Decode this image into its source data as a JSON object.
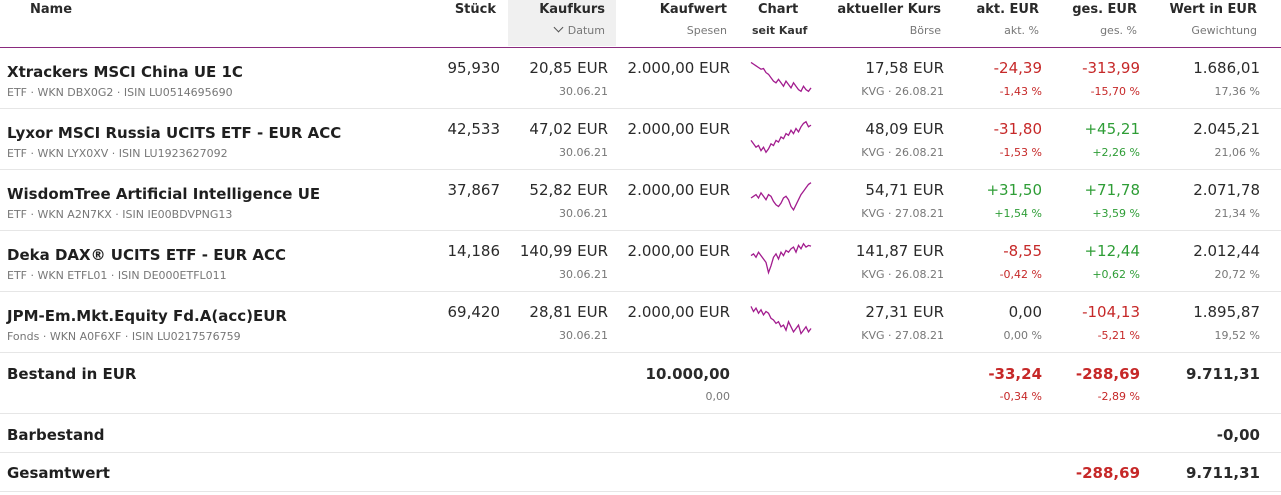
{
  "header": {
    "name": "Name",
    "stueck": "Stück",
    "kaufkurs": "Kaufkurs",
    "datum": "Datum",
    "kaufwert": "Kaufwert",
    "spesen": "Spesen",
    "chart": "Chart",
    "seit_kauf": "seit Kauf",
    "aktueller_kurs": "aktueller Kurs",
    "boerse": "Börse",
    "akt_eur": "akt. EUR",
    "akt_pct": "akt. %",
    "ges_eur": "ges. EUR",
    "ges_pct": "ges. %",
    "wert": "Wert in EUR",
    "gewichtung": "Gewichtung"
  },
  "colors": {
    "accent": "#8a2a7e",
    "negative": "#c62828",
    "positive": "#2e9d36",
    "sparkline": "#a21c8e"
  },
  "rows": [
    {
      "name": "Xtrackers MSCI China UE 1C",
      "meta": "ETF · WKN DBX0G2 · ISIN LU0514695690",
      "stueck": "95,930",
      "kaufkurs": "20,85 EUR",
      "datum": "30.06.21",
      "kaufwert": "2.000,00 EUR",
      "kurs": "17,58 EUR",
      "boerse": "KVG · 26.08.21",
      "akt_eur": "-24,39",
      "akt_pct": "-1,43 %",
      "ges_eur": "-313,99",
      "ges_pct": "-15,70 %",
      "wert": "1.686,01",
      "gewichtung": "17,36 %",
      "akt_sign": "neg",
      "ges_sign": "neg",
      "spark": [
        0.9,
        0.85,
        0.8,
        0.75,
        0.7,
        0.72,
        0.6,
        0.55,
        0.45,
        0.35,
        0.3,
        0.4,
        0.3,
        0.2,
        0.35,
        0.25,
        0.15,
        0.3,
        0.2,
        0.1,
        0.05,
        0.2,
        0.1,
        0.05,
        0.15
      ]
    },
    {
      "name": "Lyxor MSCI Russia UCITS ETF - EUR ACC",
      "meta": "ETF · WKN LYX0XV · ISIN LU1923627092",
      "stueck": "42,533",
      "kaufkurs": "47,02 EUR",
      "datum": "30.06.21",
      "kaufwert": "2.000,00 EUR",
      "kurs": "48,09 EUR",
      "boerse": "KVG · 26.08.21",
      "akt_eur": "-31,80",
      "akt_pct": "-1,53 %",
      "ges_eur": "+45,21",
      "ges_pct": "+2,26 %",
      "wert": "2.045,21",
      "gewichtung": "21,06 %",
      "akt_sign": "neg",
      "ges_sign": "pos",
      "spark": [
        0.4,
        0.3,
        0.2,
        0.25,
        0.1,
        0.2,
        0.05,
        0.15,
        0.3,
        0.25,
        0.4,
        0.35,
        0.5,
        0.45,
        0.6,
        0.55,
        0.7,
        0.6,
        0.75,
        0.65,
        0.8,
        0.9,
        0.95,
        0.8,
        0.85
      ]
    },
    {
      "name": "WisdomTree Artificial Intelligence UE",
      "meta": "ETF · WKN A2N7KX · ISIN IE00BDVPNG13",
      "stueck": "37,867",
      "kaufkurs": "52,82 EUR",
      "datum": "30.06.21",
      "kaufwert": "2.000,00 EUR",
      "kurs": "54,71 EUR",
      "boerse": "KVG · 27.08.21",
      "akt_eur": "+31,50",
      "akt_pct": "+1,54 %",
      "ges_eur": "+71,78",
      "ges_pct": "+3,59 %",
      "wert": "2.071,78",
      "gewichtung": "21,34 %",
      "akt_sign": "pos",
      "ges_sign": "pos",
      "spark": [
        0.5,
        0.55,
        0.6,
        0.5,
        0.65,
        0.55,
        0.45,
        0.6,
        0.55,
        0.4,
        0.3,
        0.25,
        0.35,
        0.5,
        0.55,
        0.45,
        0.25,
        0.15,
        0.3,
        0.45,
        0.6,
        0.7,
        0.8,
        0.9,
        0.95
      ]
    },
    {
      "name": "Deka DAX® UCITS ETF - EUR ACC",
      "meta": "ETF · WKN ETFL01 · ISIN DE000ETFL011",
      "stueck": "14,186",
      "kaufkurs": "140,99 EUR",
      "datum": "30.06.21",
      "kaufwert": "2.000,00 EUR",
      "kurs": "141,87 EUR",
      "boerse": "KVG · 26.08.21",
      "akt_eur": "-8,55",
      "akt_pct": "-0,42 %",
      "ges_eur": "+12,44",
      "ges_pct": "+0,62 %",
      "wert": "2.012,44",
      "gewichtung": "20,72 %",
      "akt_sign": "neg",
      "ges_sign": "pos",
      "spark": [
        0.6,
        0.65,
        0.55,
        0.7,
        0.6,
        0.5,
        0.4,
        0.1,
        0.3,
        0.55,
        0.65,
        0.5,
        0.7,
        0.6,
        0.75,
        0.7,
        0.8,
        0.85,
        0.7,
        0.9,
        0.8,
        0.95,
        0.85,
        0.9,
        0.88
      ]
    },
    {
      "name": "JPM-Em.Mkt.Equity Fd.A(acc)EUR",
      "meta": "Fonds · WKN A0F6XF · ISIN LU0217576759",
      "stueck": "69,420",
      "kaufkurs": "28,81 EUR",
      "datum": "30.06.21",
      "kaufwert": "2.000,00 EUR",
      "kurs": "27,31 EUR",
      "boerse": "KVG · 27.08.21",
      "akt_eur": "0,00",
      "akt_pct": "0,00 %",
      "ges_eur": "-104,13",
      "ges_pct": "-5,21 %",
      "wert": "1.895,87",
      "gewichtung": "19,52 %",
      "akt_sign": "neutral",
      "ges_sign": "neg",
      "spark": [
        0.9,
        0.75,
        0.85,
        0.7,
        0.8,
        0.65,
        0.75,
        0.7,
        0.55,
        0.5,
        0.4,
        0.45,
        0.3,
        0.35,
        0.2,
        0.45,
        0.3,
        0.15,
        0.25,
        0.35,
        0.1,
        0.2,
        0.3,
        0.15,
        0.25
      ]
    }
  ],
  "bestand": {
    "label": "Bestand in EUR",
    "kaufwert": "10.000,00",
    "spesen": "0,00",
    "akt_eur": "-33,24",
    "akt_pct": "-0,34 %",
    "ges_eur": "-288,69",
    "ges_pct": "-2,89 %",
    "wert": "9.711,31"
  },
  "barbestand": {
    "label": "Barbestand",
    "wert": "-0,00"
  },
  "gesamt": {
    "label": "Gesamtwert",
    "ges_eur": "-288,69",
    "wert": "9.711,31"
  }
}
